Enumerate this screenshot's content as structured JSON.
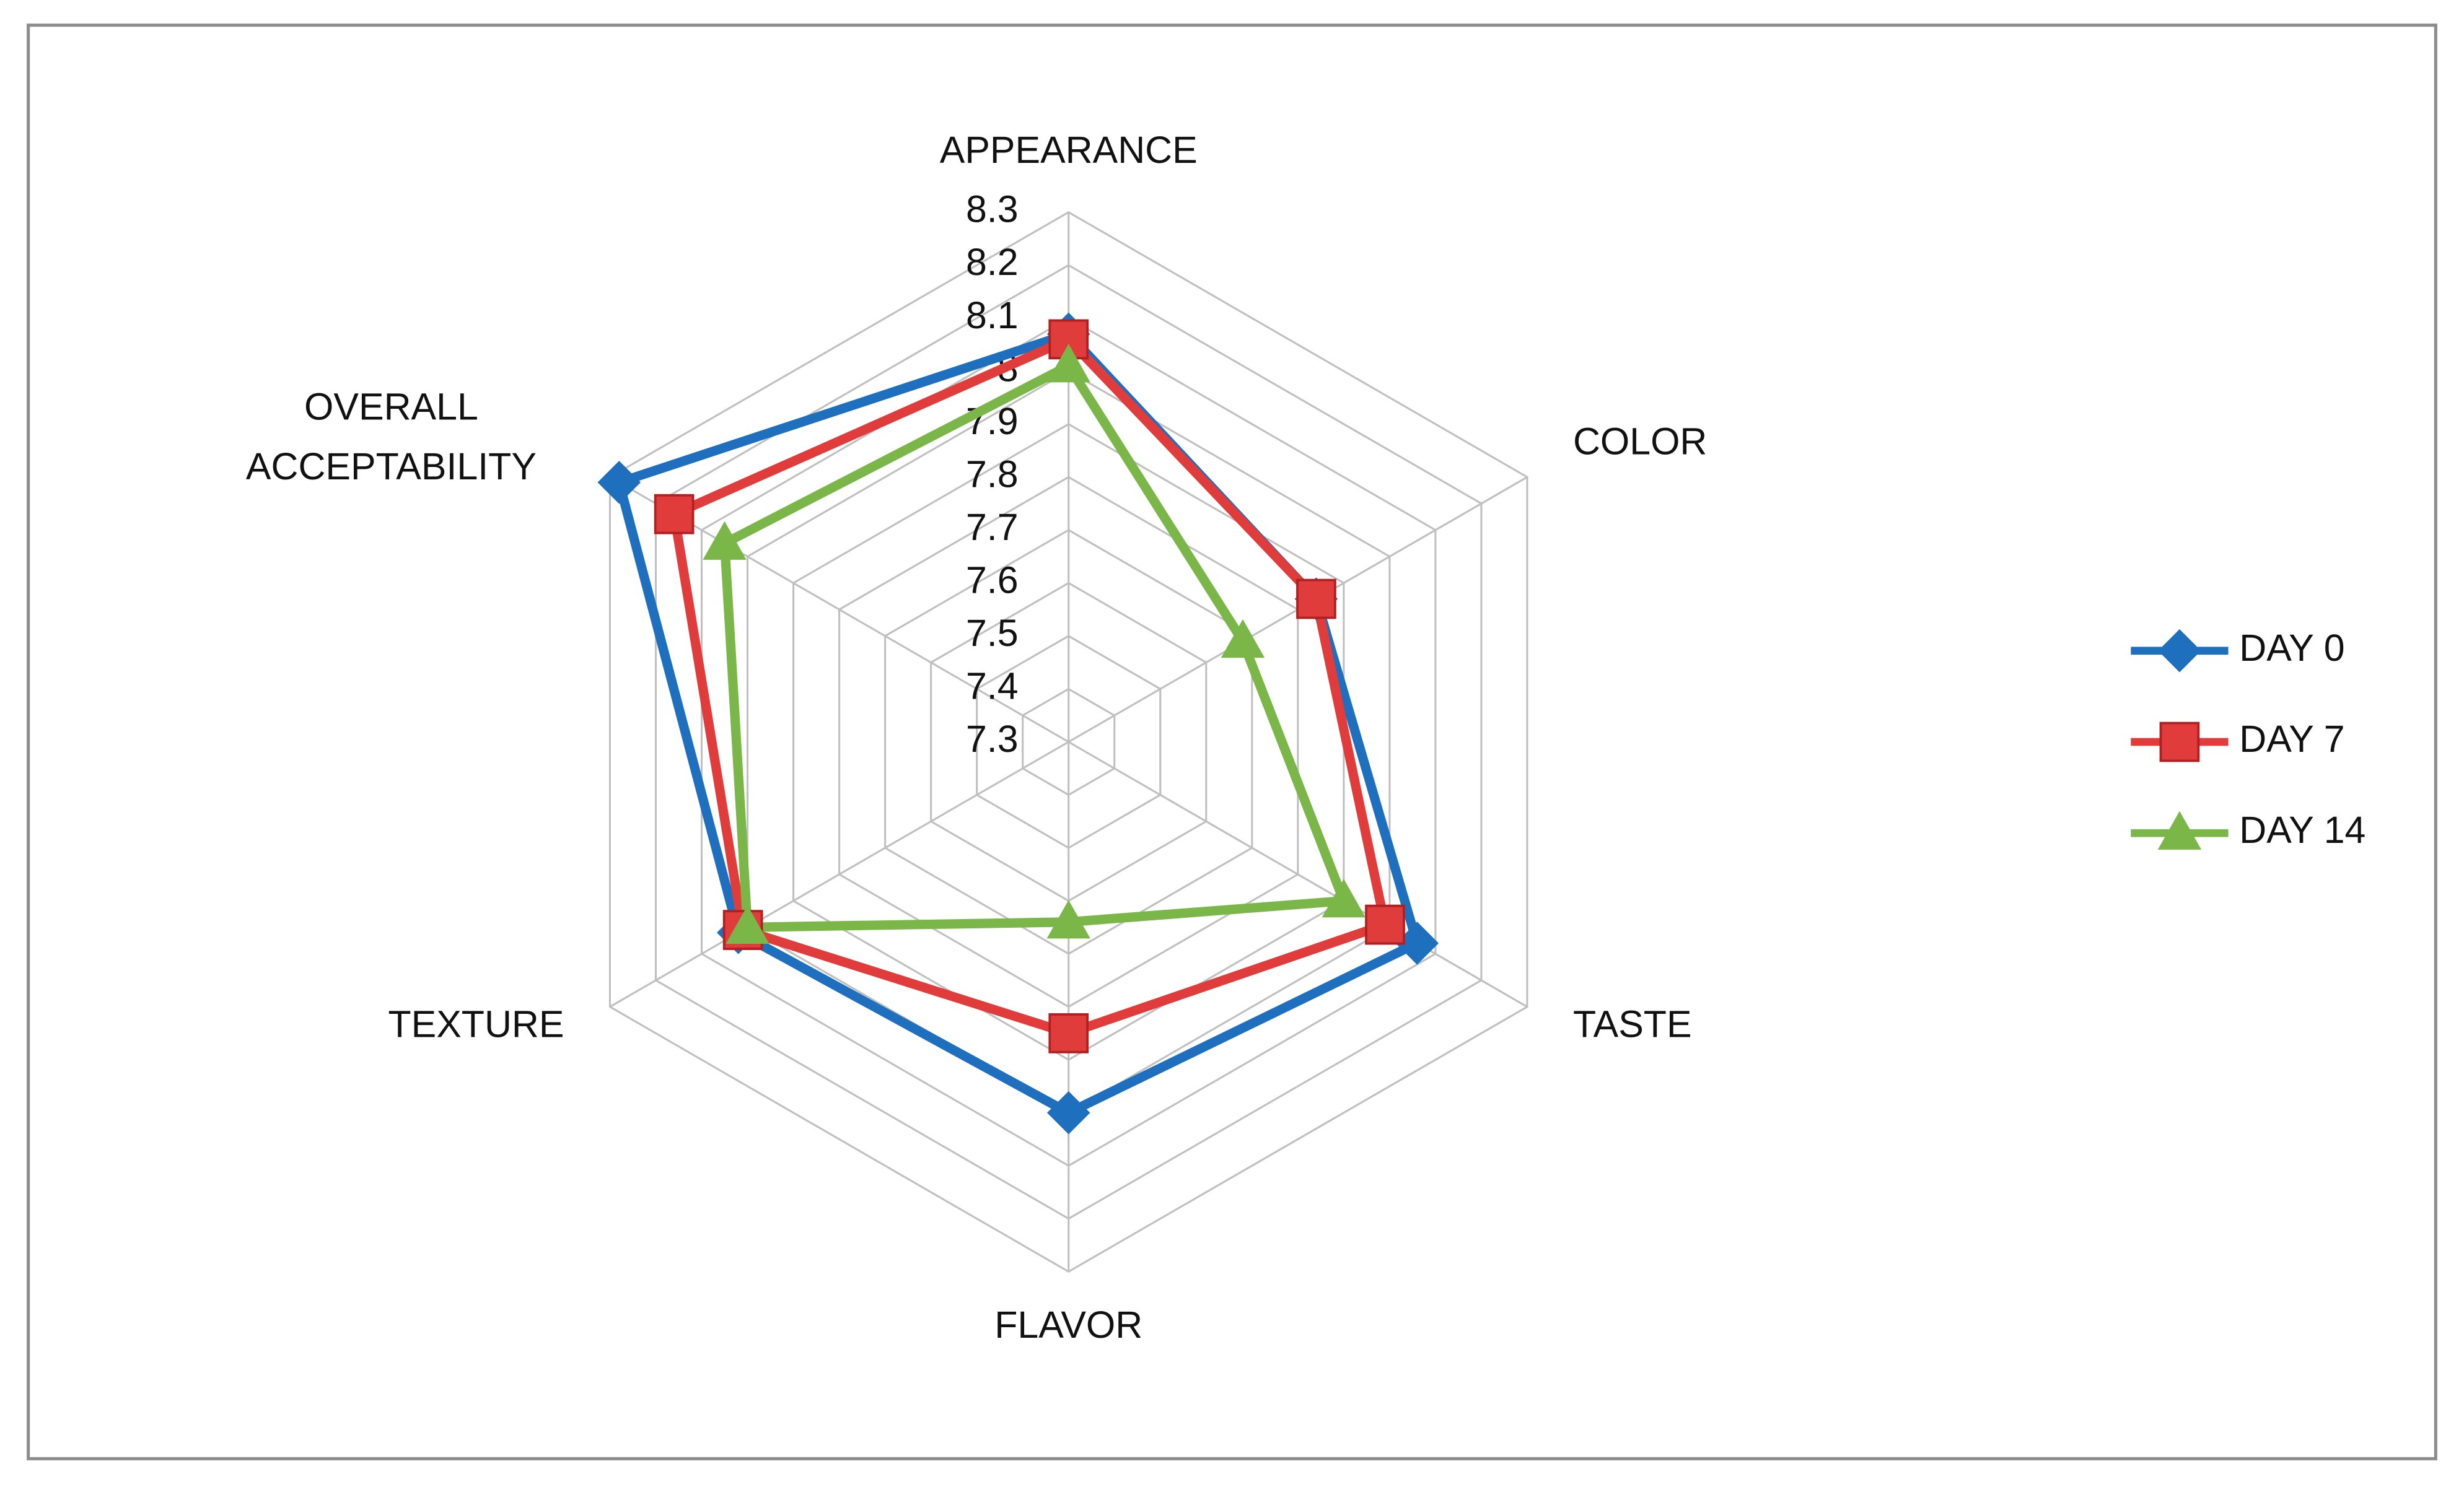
{
  "chart_data": {
    "type": "radar",
    "categories": [
      "APPEARANCE",
      "COLOR",
      "TASTE",
      "FLAVOR",
      "TEXTURE",
      "OVERALL ACCEPTABILITY"
    ],
    "series": [
      {
        "name": "DAY 0",
        "color": "#1f6fbf",
        "marker": "diamond",
        "values": [
          8.07,
          7.84,
          8.06,
          8.0,
          8.02,
          8.28
        ]
      },
      {
        "name": "DAY 7",
        "color": "#e03c3c",
        "marker": "square",
        "values": [
          8.06,
          7.84,
          7.99,
          7.85,
          8.01,
          8.16
        ]
      },
      {
        "name": "DAY 14",
        "color": "#7ab648",
        "marker": "triangle",
        "values": [
          8.01,
          7.68,
          7.9,
          7.64,
          8.0,
          8.05
        ]
      }
    ],
    "ylim": [
      7.3,
      8.3
    ],
    "yticks": [
      7.3,
      7.4,
      7.5,
      7.6,
      7.7,
      7.8,
      7.9,
      8,
      8.1,
      8.2,
      8.3
    ],
    "grid": true,
    "legend": "right"
  }
}
